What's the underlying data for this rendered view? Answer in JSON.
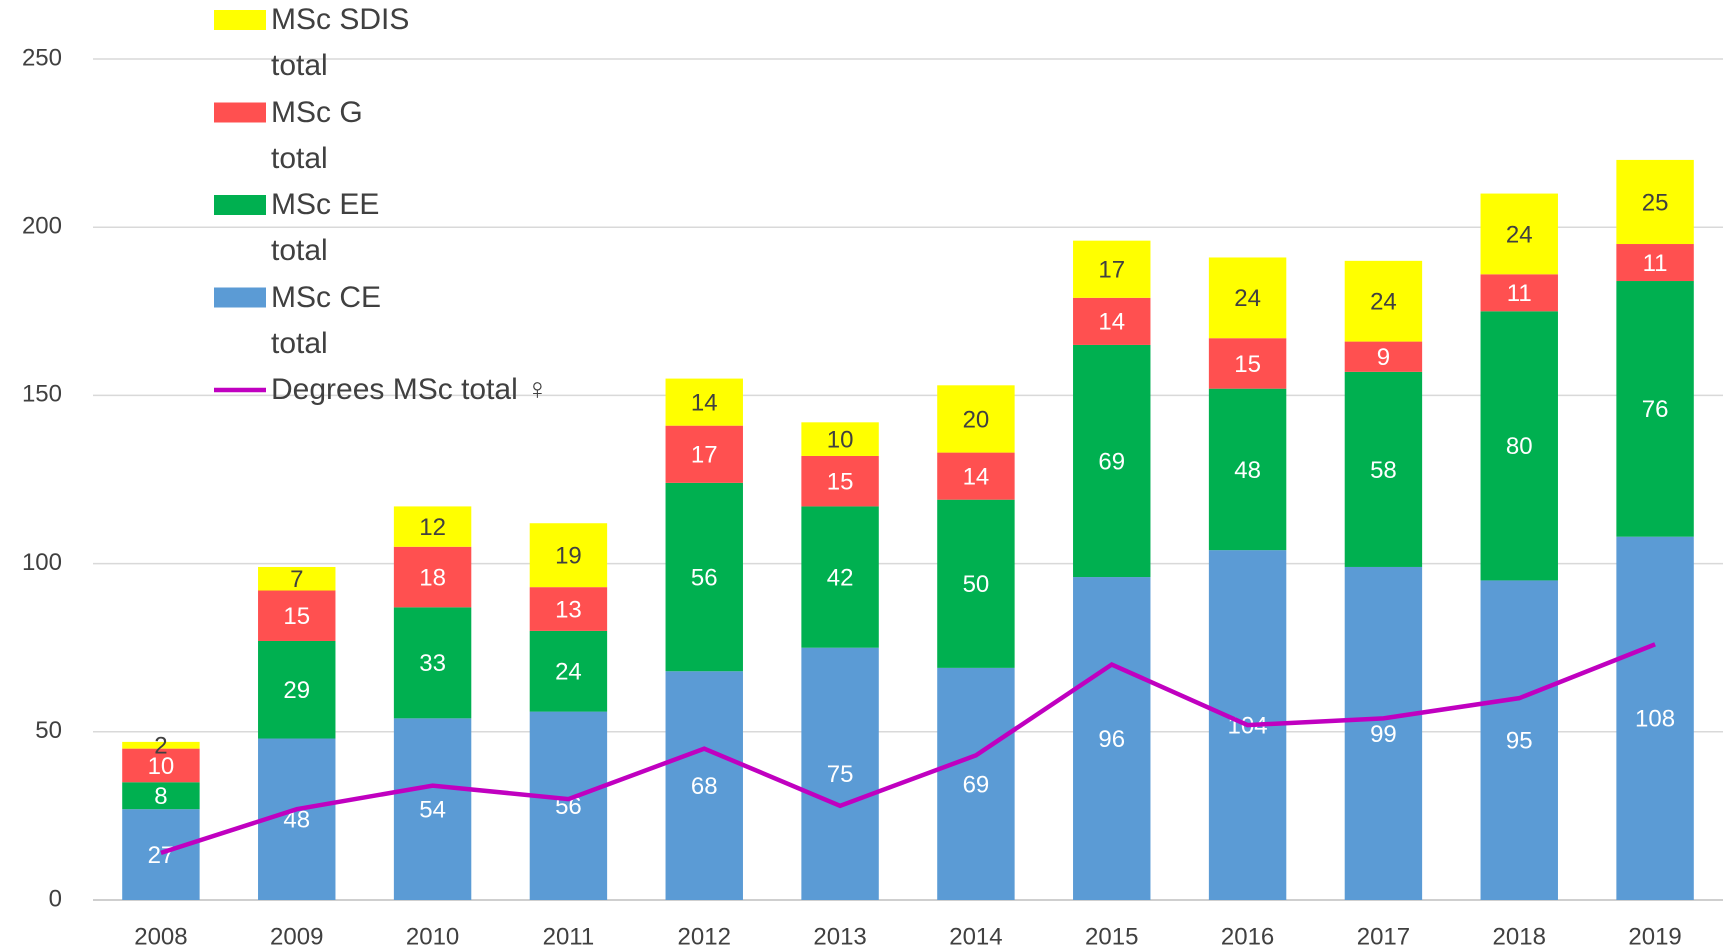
{
  "chart_data": {
    "type": "stacked_bar",
    "categories": [
      "2008",
      "2009",
      "2010",
      "2011",
      "2012",
      "2013",
      "2014",
      "2015",
      "2016",
      "2017",
      "2018",
      "2019"
    ],
    "series": [
      {
        "name": "MSc CE total",
        "color": "#5b9bd5",
        "label_color": "#ffffff",
        "values": [
          27,
          48,
          54,
          56,
          68,
          75,
          69,
          96,
          104,
          99,
          95,
          108
        ]
      },
      {
        "name": "MSc EE total",
        "color": "#00b050",
        "label_color": "#ffffff",
        "values": [
          8,
          29,
          33,
          24,
          56,
          42,
          50,
          69,
          48,
          58,
          80,
          76
        ]
      },
      {
        "name": "MSc G total",
        "color": "#ff5050",
        "label_color": "#ffffff",
        "values": [
          10,
          15,
          18,
          13,
          17,
          15,
          14,
          14,
          15,
          9,
          11,
          11
        ]
      },
      {
        "name": "MSc SDIS total",
        "color": "#ffff00",
        "label_color": "#404040",
        "values": [
          2,
          7,
          12,
          19,
          14,
          10,
          20,
          17,
          24,
          24,
          24,
          25
        ]
      },
      {
        "name": "Degrees MSc total ♀",
        "type": "line",
        "color": "#c000c0",
        "values": [
          14,
          27,
          34,
          30,
          45,
          28,
          43,
          70,
          52,
          54,
          60,
          76
        ]
      }
    ],
    "ylim": [
      0,
      250
    ],
    "yticks": [
      0,
      50,
      100,
      150,
      200,
      250
    ],
    "grid": true,
    "legend": "upper left"
  }
}
